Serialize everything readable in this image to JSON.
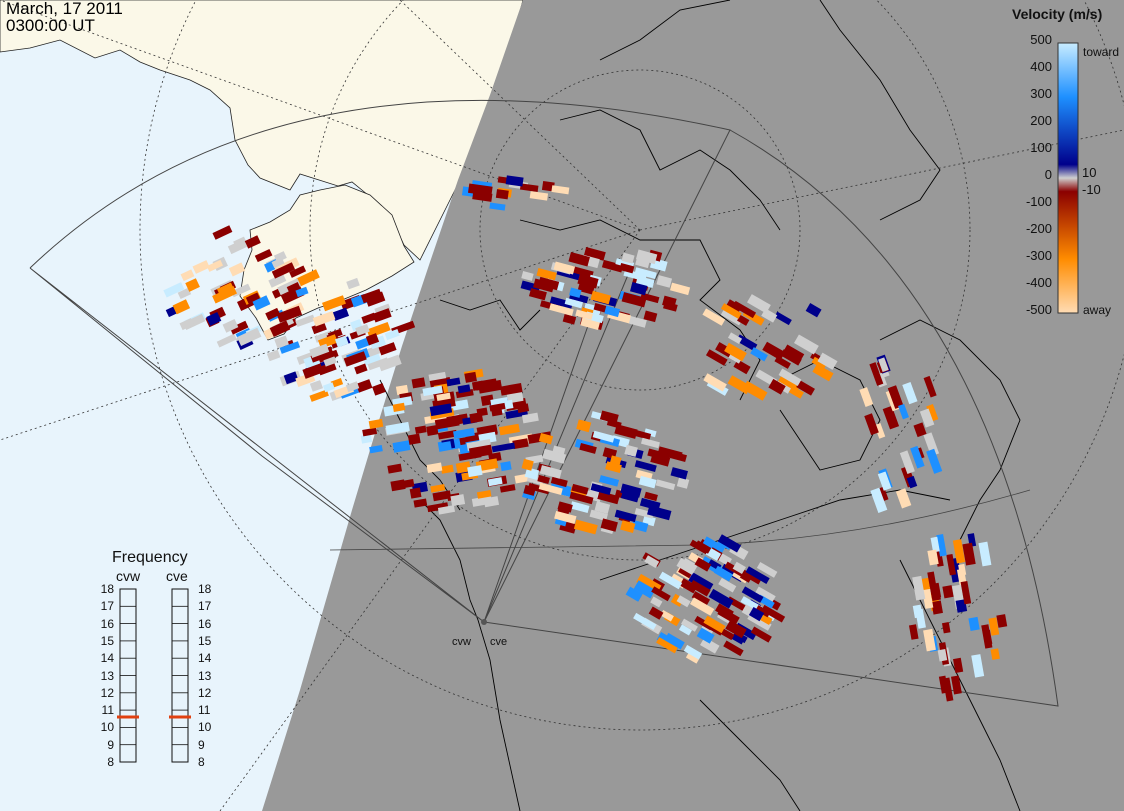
{
  "header": {
    "date": "March, 17 2011",
    "time": "0300:00 UT"
  },
  "colors": {
    "day_ocean": "#e8f4fc",
    "day_land": "#fbf8e8",
    "night": "#999999",
    "scatter_ground": "#cfcfcf",
    "coast": "#000000"
  },
  "velocity_scale": {
    "title": "Velocity (m/s)",
    "ticks": [
      "500",
      "400",
      "300",
      "200",
      "100",
      "10",
      "0",
      "-10",
      "-100",
      "-200",
      "-300",
      "-400",
      "-500"
    ],
    "toward_label": "toward",
    "away_label": "away",
    "colors": {
      "strong_toward": "#c8ecff",
      "toward_mid": "#1e90ff",
      "toward_deep": "#00008b",
      "zero": "#cfcfcf",
      "away_deep": "#8b0000",
      "away_mid": "#ff8c00",
      "strong_away": "#ffdcb4"
    }
  },
  "frequency_panel": {
    "title": "Frequency",
    "radars": [
      {
        "code": "cvw",
        "frequency": 10.6
      },
      {
        "code": "cve",
        "frequency": 10.6
      }
    ],
    "ticks": [
      "18",
      "17",
      "16",
      "15",
      "14",
      "13",
      "12",
      "11",
      "10",
      "9",
      "8"
    ],
    "marker_color": "#e04010"
  },
  "sites": [
    {
      "code": "cvw"
    },
    {
      "code": "cve"
    }
  ]
}
